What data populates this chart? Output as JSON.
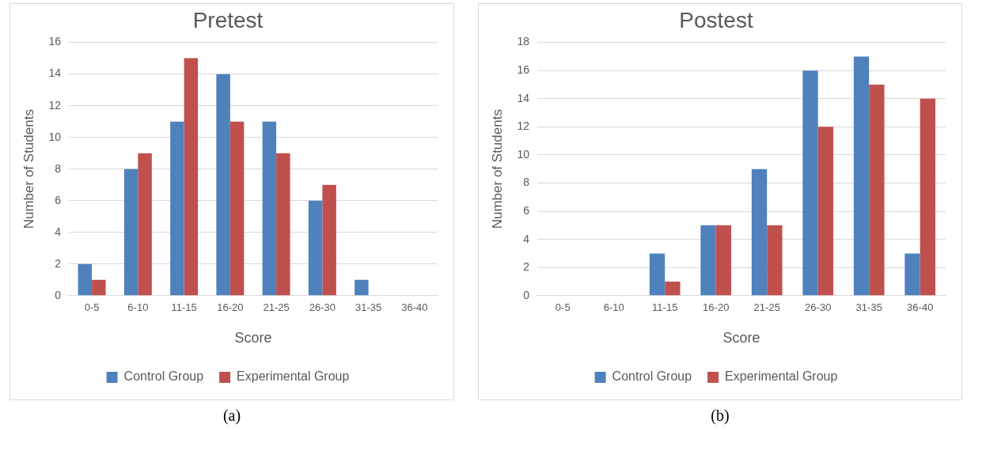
{
  "chart_data": [
    {
      "type": "bar",
      "title": "Pretest",
      "xlabel": "Score",
      "ylabel": "Number of Students",
      "categories": [
        "0-5",
        "6-10",
        "11-15",
        "16-20",
        "21-25",
        "26-30",
        "31-35",
        "36-40"
      ],
      "series": [
        {
          "name": "Control Group",
          "color": "#4f81bd",
          "values": [
            2,
            8,
            11,
            14,
            11,
            6,
            1,
            0
          ]
        },
        {
          "name": "Experimental Group",
          "color": "#c0504d",
          "values": [
            1,
            9,
            15,
            11,
            9,
            7,
            0,
            0
          ]
        }
      ],
      "ylim": [
        0,
        16
      ],
      "yticks": [
        0,
        2,
        4,
        6,
        8,
        10,
        12,
        14,
        16
      ],
      "grid": "y",
      "legend": "bottom",
      "annotations": [
        "(a)"
      ]
    },
    {
      "type": "bar",
      "title": "Postest",
      "xlabel": "Score",
      "ylabel": "Number of Students",
      "categories": [
        "0-5",
        "6-10",
        "11-15",
        "16-20",
        "21-25",
        "26-30",
        "31-35",
        "36-40"
      ],
      "series": [
        {
          "name": "Control Group",
          "color": "#4f81bd",
          "values": [
            0,
            0,
            3,
            5,
            9,
            16,
            17,
            3
          ]
        },
        {
          "name": "Experimental Group",
          "color": "#c0504d",
          "values": [
            0,
            0,
            1,
            5,
            5,
            12,
            15,
            14
          ]
        }
      ],
      "ylim": [
        0,
        18
      ],
      "yticks": [
        0,
        2,
        4,
        6,
        8,
        10,
        12,
        14,
        16,
        18
      ],
      "grid": "y",
      "legend": "bottom",
      "annotations": [
        "(b)"
      ]
    }
  ]
}
